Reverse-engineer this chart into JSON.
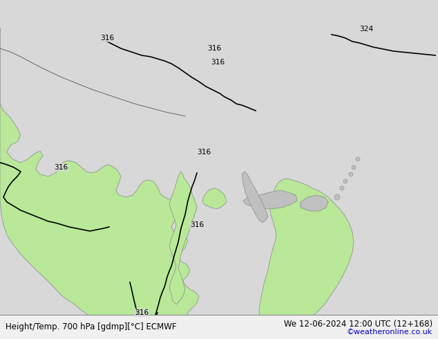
{
  "title_left": "Height/Temp. 700 hPa [gdmp][°C] ECMWF",
  "title_right": "We 12-06-2024 12:00 UTC (12+168)",
  "watermark": "©weatheronline.co.uk",
  "bg_color": "#e8e8e8",
  "land_color_light": "#c8edb0",
  "land_color_dark": "#a8d888",
  "sea_color": "#e0e0e0",
  "contour_color": "#000000",
  "contour_label": "316",
  "contour_label2": "324",
  "font_size_bottom": 9,
  "font_size_watermark": 9
}
